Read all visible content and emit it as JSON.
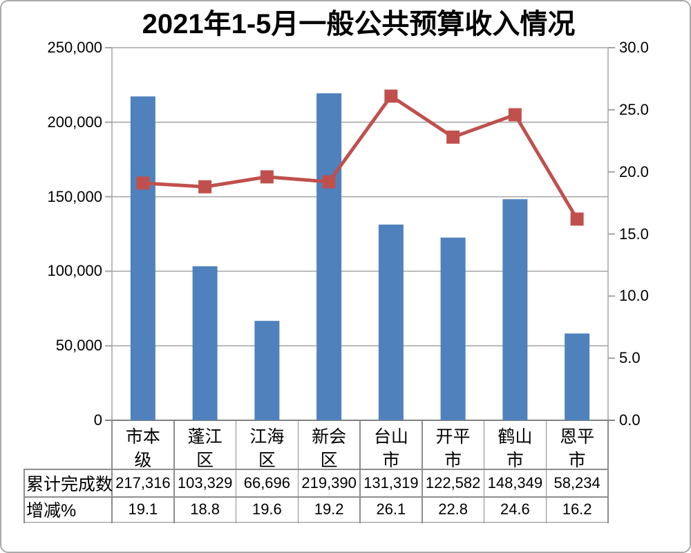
{
  "title": "2021年1-5月一般公共预算收入情况",
  "chart_data": {
    "type": "combo_bar_line",
    "title": "2021年1-5月一般公共预算收入情况",
    "categories": [
      "市本级",
      "蓬江区",
      "江海区",
      "新会区",
      "台山市",
      "开平市",
      "鹤山市",
      "恩平市"
    ],
    "series": [
      {
        "name": "累计完成数",
        "type": "bar",
        "axis": "left",
        "color": "#4F81BD",
        "values": [
          217316,
          103329,
          66696,
          219390,
          131319,
          122582,
          148349,
          58234
        ],
        "labels": [
          "217,316",
          "103,329",
          "66,696",
          "219,390",
          "131,319",
          "122,582",
          "148,349",
          "58,234"
        ]
      },
      {
        "name": "增减%",
        "type": "line",
        "axis": "right",
        "color": "#C0504D",
        "values": [
          19.1,
          18.8,
          19.6,
          19.2,
          26.1,
          22.8,
          24.6,
          16.2
        ],
        "labels": [
          "19.1",
          "18.8",
          "19.6",
          "19.2",
          "26.1",
          "22.8",
          "24.6",
          "16.2"
        ]
      }
    ],
    "left_axis": {
      "min": 0,
      "max": 250000,
      "step": 50000,
      "tick_labels": [
        "0",
        "50,000",
        "100,000",
        "150,000",
        "200,000",
        "250,000"
      ]
    },
    "right_axis": {
      "min": 0,
      "max": 30,
      "step": 5,
      "tick_labels": [
        "0.0",
        "5.0",
        "10.0",
        "15.0",
        "20.0",
        "25.0",
        "30.0"
      ]
    },
    "grid": "horizontal",
    "legend_position": "none",
    "data_table_below_chart": true
  },
  "colors": {
    "bar": "#4F81BD",
    "line": "#C0504D",
    "gridline": "#a3a3a3",
    "axis_line": "#808080",
    "table_border": "#8c8c8c",
    "background": "#FFFFFF",
    "text": "#000000"
  }
}
